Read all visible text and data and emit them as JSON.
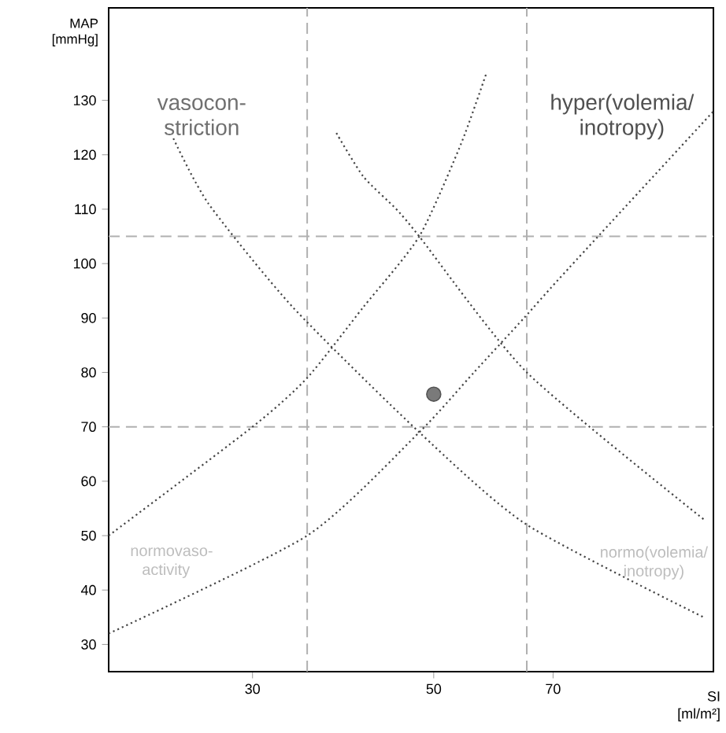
{
  "chart_data": {
    "type": "scatter",
    "xlabel": "SI [ml/m²]",
    "ylabel": "MAP [mmHg]",
    "log": "x",
    "xlim": [
      20,
      110
    ],
    "ylim": [
      25,
      147
    ],
    "xticks": [
      30,
      50,
      70
    ],
    "yticks": [
      30,
      40,
      50,
      60,
      70,
      80,
      90,
      100,
      110,
      120,
      130
    ],
    "grid": false,
    "marker": "circle",
    "series": [
      {
        "color": "#7a7a7a",
        "x": [
          50
        ],
        "values": [
          76
        ]
      },
      {
        "type": "line",
        "line_style": "dotted",
        "marker": "none",
        "color": "#444444",
        "x": [
          20,
          30,
          35,
          41,
          48,
          54,
          58
        ],
        "values": [
          50,
          70,
          79,
          92,
          105,
          122,
          135
        ]
      },
      {
        "type": "line",
        "line_style": "dotted",
        "marker": "none",
        "color": "#444444",
        "x": [
          20,
          35,
          48,
          56,
          64.5,
          72,
          110
        ],
        "values": [
          32,
          50,
          69,
          80,
          90,
          98,
          128
        ]
      },
      {
        "type": "line",
        "line_style": "dotted",
        "marker": "none",
        "color": "#444444",
        "x": [
          24,
          26.5,
          33.6,
          48,
          65,
          107
        ],
        "values": [
          123,
          111,
          92,
          69,
          52,
          35
        ]
      },
      {
        "type": "line",
        "line_style": "dotted",
        "marker": "none",
        "color": "#444444",
        "x": [
          38,
          41,
          45,
          48,
          65,
          107
        ],
        "values": [
          124,
          116,
          110,
          105,
          80,
          53
        ]
      }
    ],
    "ref_lines": [
      {
        "axis": "y",
        "value": 105,
        "color": "#b0b0b0",
        "line_style": "dashed"
      },
      {
        "axis": "y",
        "value": 70,
        "color": "#b0b0b0",
        "line_style": "dashed"
      },
      {
        "axis": "x",
        "value": 35,
        "color": "#b0b0b0",
        "line_style": "dashed"
      },
      {
        "axis": "x",
        "value": 65,
        "color": "#b0b0b0",
        "line_style": "dashed"
      }
    ],
    "annotations": [
      "vasocon-striction",
      "hyper(volemia/ inotropy)",
      "normovaso-activity",
      "normo(volemia/ inotropy)"
    ]
  }
}
